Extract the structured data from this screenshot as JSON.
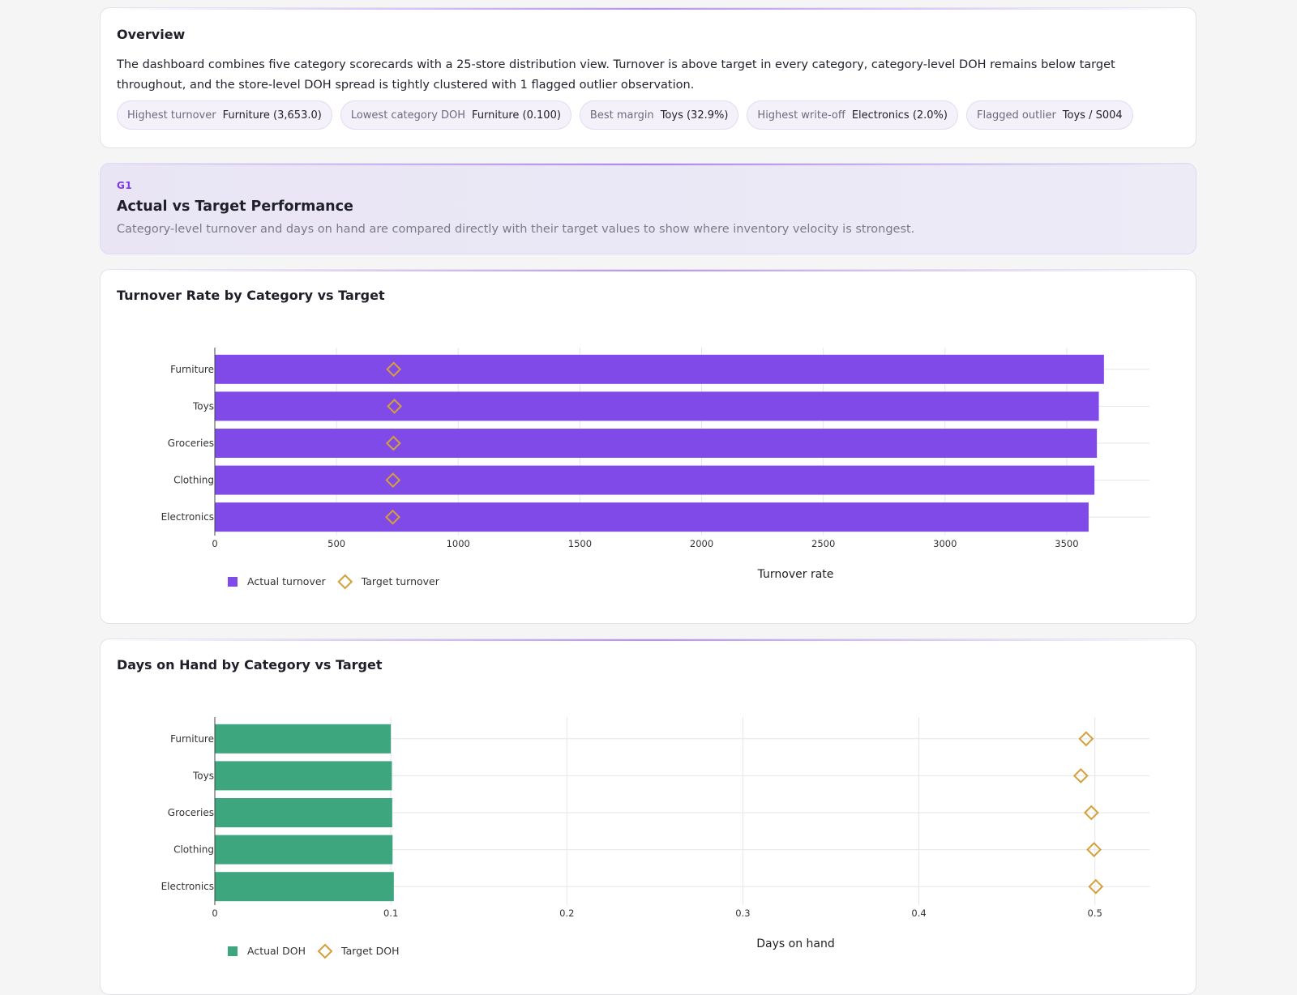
{
  "overview": {
    "title": "Overview",
    "text": "The dashboard combines five category scorecards with a 25-store distribution view. Turnover is above target in every category, category-level DOH remains below target throughout, and the store-level DOH spread is tightly clustered with 1 flagged outlier observation.",
    "chips": [
      {
        "label": "Highest turnover",
        "value": "Furniture (3,653.0)"
      },
      {
        "label": "Lowest category DOH",
        "value": "Furniture (0.100)"
      },
      {
        "label": "Best margin",
        "value": "Toys (32.9%)"
      },
      {
        "label": "Highest write-off",
        "value": "Electronics (2.0%)"
      },
      {
        "label": "Flagged outlier",
        "value": "Toys / S004"
      }
    ]
  },
  "section": {
    "tag": "G1",
    "title": "Actual vs Target Performance",
    "description": "Category-level turnover and days on hand are compared directly with their target values to show where inventory velocity is strongest."
  },
  "colors": {
    "turnover_bar": "#7f4ae8",
    "doh_bar": "#3ea67f",
    "target_marker": "#d4a03a",
    "grid": "#e6e6ea"
  },
  "chart_data": [
    {
      "type": "bar",
      "orientation": "horizontal",
      "title": "Turnover Rate by Category vs Target",
      "xlabel": "Turnover rate",
      "ylabel": "",
      "categories": [
        "Furniture",
        "Toys",
        "Groceries",
        "Clothing",
        "Electronics"
      ],
      "series": [
        {
          "name": "Actual turnover",
          "kind": "bar",
          "values": [
            3653,
            3632,
            3624,
            3614,
            3590
          ]
        },
        {
          "name": "Target turnover",
          "kind": "marker",
          "marker": "diamond-open",
          "values": [
            735,
            738,
            734,
            732,
            731
          ]
        }
      ],
      "xlim": [
        0,
        3840
      ],
      "xticks": [
        0,
        500,
        1000,
        1500,
        2000,
        2500,
        3000,
        3500
      ],
      "grid": true,
      "legend_position": "bottom-left"
    },
    {
      "type": "bar",
      "orientation": "horizontal",
      "title": "Days on Hand by Category vs Target",
      "xlabel": "Days on hand",
      "ylabel": "",
      "categories": [
        "Furniture",
        "Toys",
        "Groceries",
        "Clothing",
        "Electronics"
      ],
      "series": [
        {
          "name": "Actual DOH",
          "kind": "bar",
          "values": [
            0.1,
            0.1006,
            0.1008,
            0.101,
            0.1017
          ]
        },
        {
          "name": "Target DOH",
          "kind": "marker",
          "marker": "diamond-open",
          "values": [
            0.495,
            0.492,
            0.498,
            0.4995,
            0.5005
          ]
        }
      ],
      "xlim": [
        0,
        0.531
      ],
      "xticks": [
        "0",
        "0.1",
        "0.2",
        "0.3",
        "0.4",
        "0.5"
      ],
      "grid": true,
      "legend_position": "bottom-left"
    }
  ]
}
